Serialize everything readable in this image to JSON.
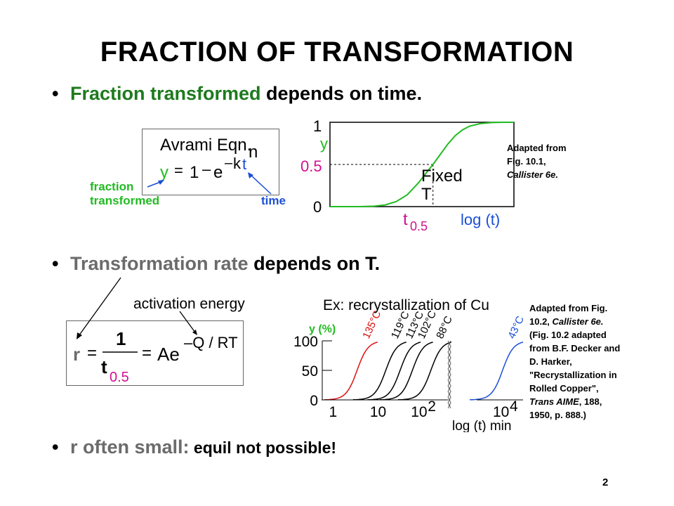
{
  "slide": {
    "title": "FRACTION OF TRANSFORMATION",
    "page_number": "2",
    "bullet_char": "•"
  },
  "bullets": [
    {
      "highlight": "Fraction transformed",
      "rest": " depends on time."
    },
    {
      "highlight": "Transformation rate",
      "rest": " depends on T."
    },
    {
      "highlight": "r often small:",
      "rest": " equil not possible!"
    }
  ],
  "avrami": {
    "heading": "Avrami Eqn.",
    "y": "y",
    "equals": "=",
    "one": "1",
    "minus": "–",
    "e": "e",
    "neg": "–",
    "k": "k",
    "t": "t",
    "n": "n",
    "label_fraction": "fraction",
    "label_transformed": "transformed",
    "label_time": "time"
  },
  "rate_eqn": {
    "annotation": "activation energy",
    "r": "r",
    "equals1": "=",
    "num": "1",
    "den_t": "t",
    "den_sub": "0.5",
    "equals2": "=",
    "Ae": "Ae",
    "exponent": "–Q / RT"
  },
  "notes": {
    "fig1_line1": "Adapted from",
    "fig1_line2": "Fig. 10.1,",
    "fig1_line3": "Callister 6e.",
    "fig2_line1": "Adapted from Fig.",
    "fig2_line2a": "10.2, ",
    "fig2_line2b": "Callister 6e.",
    "fig2_line3": "(Fig. 10.2 adapted",
    "fig2_line4": "from B.F. Decker and",
    "fig2_line5": "D. Harker,",
    "fig2_line6": "\"Recrystallization in",
    "fig2_line7": "Rolled Copper\",",
    "fig2_line8a": "Trans AIME",
    "fig2_line8b": ", ",
    "fig2_line8c": "188",
    "fig2_line8d": ",",
    "fig2_line9": "1950, p. 888.)"
  },
  "colors": {
    "green": "#1e7a1e",
    "magenta": "#d01090",
    "blue": "#1a4fd6",
    "bright_green": "#22bb22",
    "red": "#dd1111",
    "grey": "#6b6b6b"
  },
  "chart_data": [
    {
      "type": "line",
      "ylabel": "y",
      "xlabel": "log (t)",
      "y_ticks": [
        "0",
        "0.5",
        "1"
      ],
      "x_marker": "t",
      "x_marker_sub": "0.5",
      "annotation_line1": "Fixed",
      "annotation_line2": "T",
      "x": [
        0,
        0.08,
        0.16,
        0.24,
        0.3,
        0.36,
        0.42,
        0.48,
        0.52,
        0.56,
        0.6,
        0.64,
        0.68,
        0.72,
        0.76,
        0.82,
        0.88,
        0.94,
        1.0
      ],
      "y": [
        0,
        0,
        0,
        0.005,
        0.02,
        0.06,
        0.14,
        0.28,
        0.39,
        0.5,
        0.62,
        0.74,
        0.84,
        0.91,
        0.955,
        0.985,
        0.997,
        1.0,
        1.0
      ],
      "xlim": [
        0,
        1
      ],
      "ylim": [
        0,
        1
      ],
      "t_half": 0.56
    },
    {
      "type": "line",
      "title": "Ex: recrystallization of Cu",
      "ylabel": "y (%)",
      "xlabel": "log (t) min",
      "y_ticks": [
        {
          "value": 0,
          "label": "0"
        },
        {
          "value": 50,
          "label": "50"
        },
        {
          "value": 100,
          "label": "100"
        }
      ],
      "x_ticks": [
        {
          "value": 0,
          "base": "1",
          "exp": ""
        },
        {
          "value": 1,
          "base": "10",
          "exp": ""
        },
        {
          "value": 2,
          "base": "10",
          "exp": "2"
        },
        {
          "value": 4,
          "base": "10",
          "exp": "4"
        }
      ],
      "ylim": [
        0,
        100
      ],
      "x_logmin": [
        -0.3,
        4.6
      ],
      "break_between": [
        2.7,
        3.4
      ],
      "series": [
        {
          "name": "135°C",
          "color": "#dd1111",
          "center": 0.55,
          "steep": 7.5
        },
        {
          "name": "119°C",
          "color": "#000000",
          "center": 1.25,
          "steep": 7.5
        },
        {
          "name": "113°C",
          "color": "#000000",
          "center": 1.6,
          "steep": 7.5
        },
        {
          "name": "102°C",
          "color": "#000000",
          "center": 1.9,
          "steep": 7.5
        },
        {
          "name": "88°C",
          "color": "#000000",
          "center": 2.35,
          "steep": 7.5
        },
        {
          "name": "43°C",
          "color": "#1a4fd6",
          "center": 4.1,
          "steep": 7.5
        }
      ]
    }
  ]
}
